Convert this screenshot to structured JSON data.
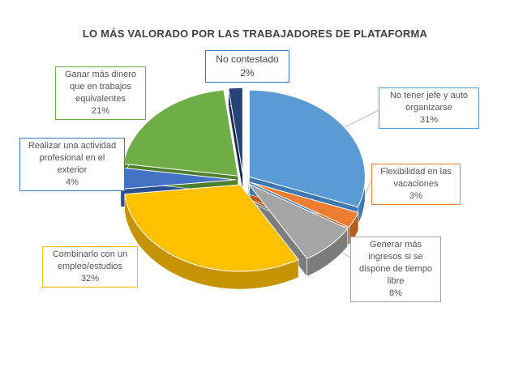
{
  "chart_data": {
    "type": "pie",
    "title": "LO MÁS VALORADO POR LAS TRABAJADORES DE PLATAFORMA",
    "slices": [
      {
        "label": "No tener jefe y auto organizarse",
        "value": 31,
        "value_label": "31%",
        "color": "#5B9BD5",
        "side": "#3E78B0"
      },
      {
        "label": "Flexibilidad en las vacaciones",
        "value": 3,
        "value_label": "3%",
        "color": "#ED7D31",
        "side": "#B85A1C"
      },
      {
        "label": "Generar más ingresos si se dispone de tiempo libre",
        "value": 8,
        "value_label": "8%",
        "color": "#A5A5A5",
        "side": "#7C7C7C"
      },
      {
        "label": "Combinarlo con un empleo/estudios",
        "value": 32,
        "value_label": "32%",
        "color": "#FFC000",
        "side": "#C79300"
      },
      {
        "label": "Realizar una actividad profesional en el exterior",
        "value": 4,
        "value_label": "4%",
        "color": "#4472C4",
        "side": "#2B4F8F"
      },
      {
        "label": "Ganar más dinero que en trabajos equivalentes",
        "value": 21,
        "value_label": "21%",
        "color": "#70AD47",
        "side": "#4E7F2F"
      },
      {
        "label": "No contestado",
        "value": 2,
        "value_label": "2%",
        "color": "#264478",
        "side": "#17294A"
      }
    ]
  }
}
